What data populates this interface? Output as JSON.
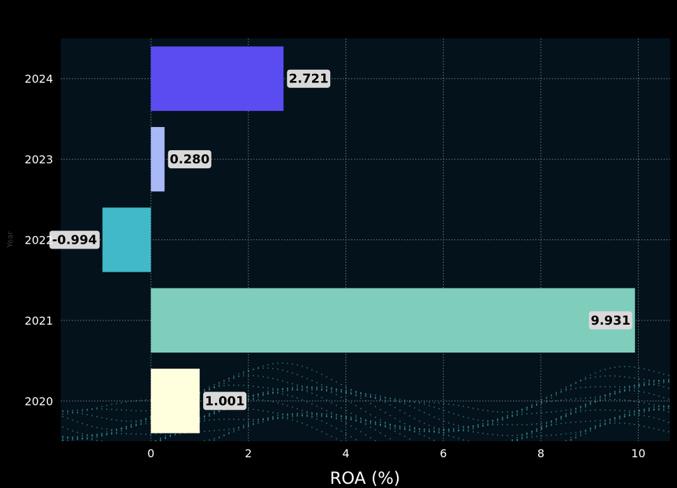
{
  "chart_data": {
    "type": "bar",
    "orientation": "horizontal",
    "categories": [
      "2024",
      "2023",
      "2022",
      "2021",
      "2020"
    ],
    "values": [
      2.721,
      0.28,
      -0.994,
      9.931,
      1.001
    ],
    "value_labels": [
      "2.721",
      "0.280",
      "-0.994",
      "9.931",
      "1.001"
    ],
    "colors": [
      "#5b4cf2",
      "#a9b9f7",
      "#41b9c9",
      "#7fcdbb",
      "#ffffdd"
    ],
    "xlabel": "ROA (%)",
    "ylabel": "Year",
    "xlim": [
      -1.85,
      10.65
    ],
    "xticks": [
      0,
      2,
      4,
      6,
      8,
      10
    ],
    "grid": true,
    "background": "#04121c",
    "page_background": "#000000",
    "grid_color": "#9aa3a8"
  }
}
